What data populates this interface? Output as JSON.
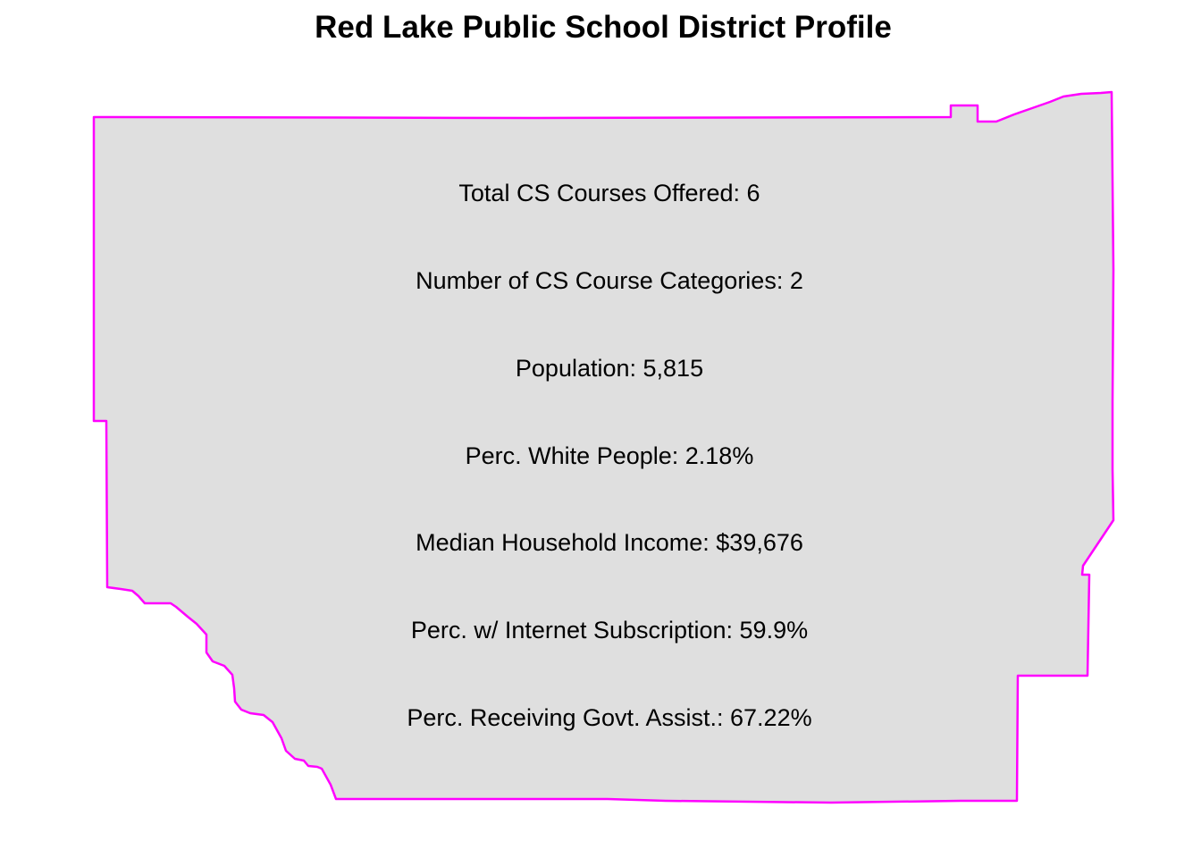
{
  "title": "Red Lake Public School District Profile",
  "map": {
    "region_fill": "#dfdfdf",
    "border_color": "#ff00ff",
    "text_color": "#000000"
  },
  "stats": [
    "Total CS Courses Offered: 6",
    "Number of CS Course Categories: 2",
    "Population: 5,815",
    "Perc. White People: 2.18%",
    "Median Household Income: $39,676",
    "Perc. w/ Internet Subscription: 59.9%",
    "Perc. Receiving Govt. Assist.: 67.22%"
  ]
}
